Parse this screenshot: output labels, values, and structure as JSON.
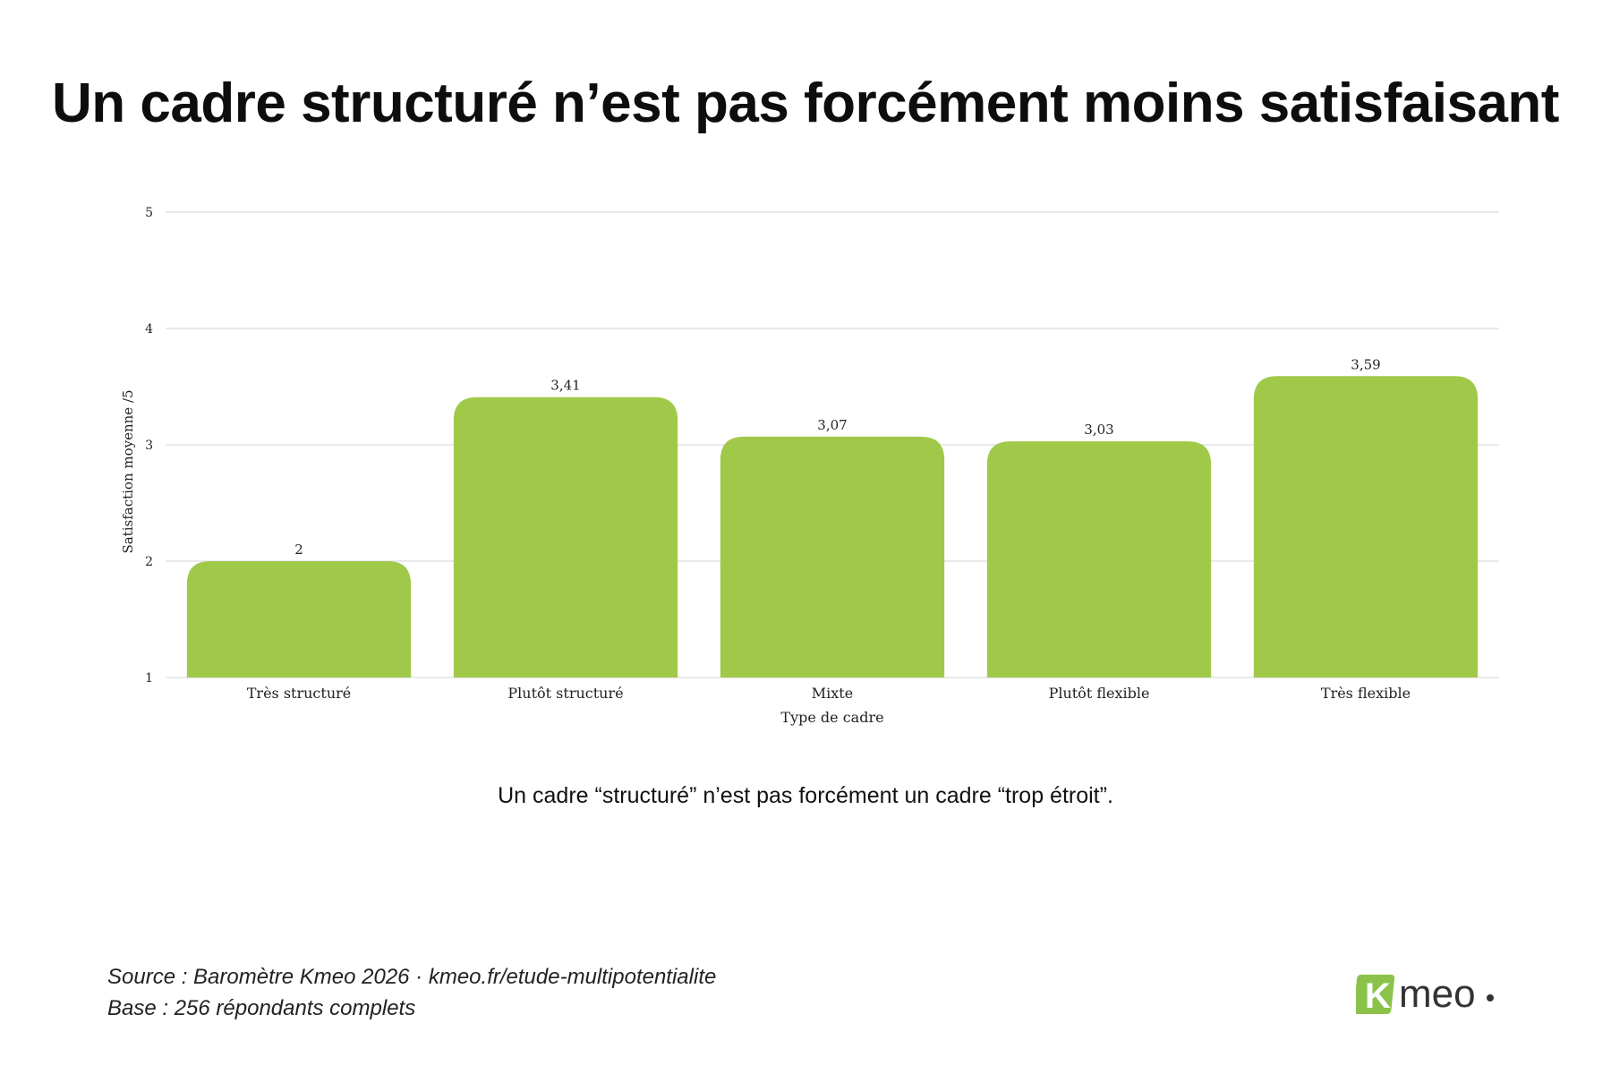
{
  "title": "Un cadre structuré n’est pas forcément moins satisfaisant",
  "subtitle": "Un cadre “structuré” n’est pas forcément un cadre “trop étroit”.",
  "footer": {
    "source": "Source : Baromètre Kmeo 2026 · kmeo.fr/etude-multipotentialite",
    "base": "Base : 256 répondants complets"
  },
  "logo": {
    "letter": "K",
    "text": "meo",
    "color": "#8bc34a"
  },
  "chart_data": {
    "type": "bar",
    "categories": [
      "Très structuré",
      "Plutôt structuré",
      "Mixte",
      "Plutôt flexible",
      "Très flexible"
    ],
    "values": [
      2,
      3.41,
      3.07,
      3.03,
      3.59
    ],
    "value_labels": [
      "2",
      "3,41",
      "3,07",
      "3,03",
      "3,59"
    ],
    "xlabel": "Type de cadre",
    "ylabel": "Satisfaction moyenne /5",
    "ylim": [
      1,
      5
    ],
    "yticks": [
      1,
      2,
      3,
      4,
      5
    ],
    "grid": true,
    "bar_color": "#a0c94a",
    "grid_color": "#e2e2e2"
  }
}
